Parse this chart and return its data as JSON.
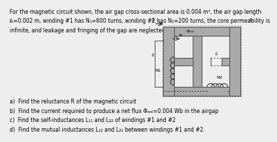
{
  "bg_color": "#eeeeee",
  "text_color": "#000000",
  "core_color": "#aaaaaa",
  "core_line_color": "#555555",
  "title_lines": [
    "For the magnetic circuit shown, the air gap cross-sectional area is 0.004 m², the air gap length",
    "ℓₑ=0.002 m, winding #1 has N₁=600 turns, winding #2 has N₂=200 turns, the core permeability is",
    "infinite, and leakage and fringing of the gap are neglected."
  ],
  "questions": [
    "a)  Find the reluctance R of the magnetic circuit",
    "b)  Find the current required to produce a net flux Φₙₑₜ=0.004 Wb in the airgap",
    "c)  Find the self-inductances L₁₁ and L₂₂ of windings #1 and #2",
    "d)  Find the mutual inductances L₁₂ and L₂₁ between windings #1 and #2."
  ],
  "fontsize_title": 5.5,
  "fontsize_q": 5.5
}
